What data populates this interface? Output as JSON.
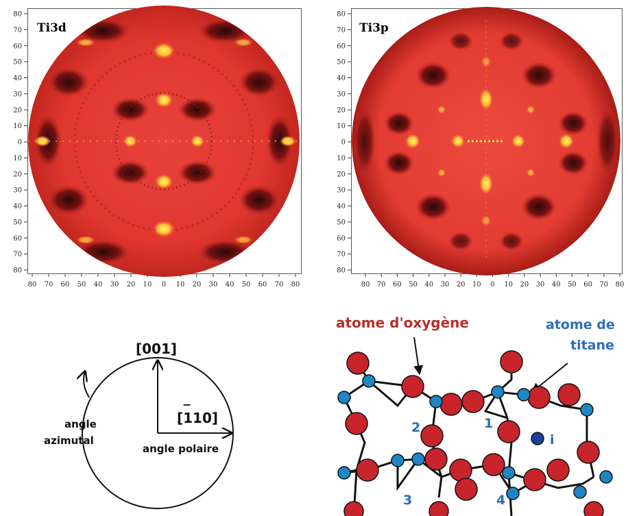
{
  "plots": [
    {
      "title": "Ti3d"
    },
    {
      "title": "Ti3p"
    }
  ],
  "axes": {
    "y_ticks": [
      "80",
      "70",
      "60",
      "50",
      "40",
      "30",
      "20",
      "10",
      "0",
      "10",
      "20",
      "30",
      "40",
      "50",
      "60",
      "70",
      "80"
    ],
    "x_ticks": [
      "80",
      "70",
      "60",
      "50",
      "40",
      "30",
      "20",
      "10",
      "0",
      "10",
      "20",
      "30",
      "40",
      "50",
      "60",
      "70",
      "80"
    ]
  },
  "angle_diagram": {
    "axis_001": "[001]",
    "axis_110": "[110]",
    "axis_110_bar": "−",
    "azimuthal_line1": "angle",
    "azimuthal_line2": "azimutal",
    "polar": "angle polaire"
  },
  "crystal": {
    "oxygen_label": "atome d'oxygène",
    "titanium_label_line1": "atome de",
    "titanium_label_line2": "titane",
    "site_labels": [
      "1",
      "2",
      "3",
      "4"
    ],
    "interstitial_label": "i",
    "colors": {
      "oxygen": "#c8242b",
      "titanium": "#1e86c4",
      "interstitial": "#1c3f9a",
      "label_blue": "#2a6fb6",
      "label_red": "#b7302a"
    }
  }
}
